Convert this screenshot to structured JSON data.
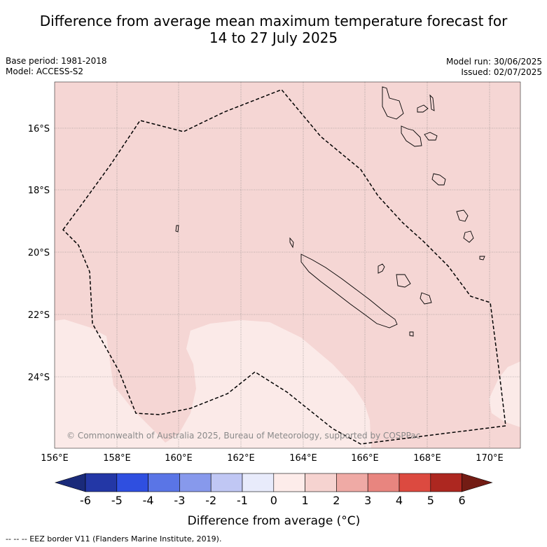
{
  "title_line1": "Difference from average mean maximum temperature forecast for",
  "title_line2": "14 to 27 July 2025",
  "meta_left": {
    "base_period": "Base period: 1981-2018",
    "model": "Model: ACCESS-S2"
  },
  "meta_right": {
    "model_run": "Model run: 30/06/2025",
    "issued": "Issued: 02/07/2025"
  },
  "map": {
    "lon_range": [
      156,
      171
    ],
    "lat_range": [
      -26.2,
      -14.8
    ],
    "lon_ticks": [
      "156°E",
      "158°E",
      "160°E",
      "162°E",
      "164°E",
      "166°E",
      "168°E",
      "170°E"
    ],
    "lat_ticks": [
      "16°S",
      "18°S",
      "20°S",
      "22°S",
      "24°S"
    ],
    "copyright": "© Commonwealth of Australia 2025, Bureau of Meteorology, supported by COSPPac",
    "background_color": "#f5d6d4",
    "low_anomaly_color": "#fbeae8",
    "eez_label": "EEZ border"
  },
  "colorbar": {
    "ticks": [
      "-6",
      "-5",
      "-4",
      "-3",
      "-2",
      "-1",
      "0",
      "1",
      "2",
      "3",
      "4",
      "5",
      "6"
    ],
    "colors": [
      "#2337a6",
      "#2f4fe0",
      "#5a75e6",
      "#8799ec",
      "#c0c7f4",
      "#e8ebfb",
      "#fdecea",
      "#f6d3d0",
      "#efaaa5",
      "#e8857f",
      "#dc4a40",
      "#ad2720"
    ],
    "low_extend_color": "#1a2a7a",
    "high_extend_color": "#731c14",
    "label": "Difference from average (°C)"
  },
  "footer": "--  --  -- EEZ border V11 (Flanders Marine Institute, 2019)."
}
